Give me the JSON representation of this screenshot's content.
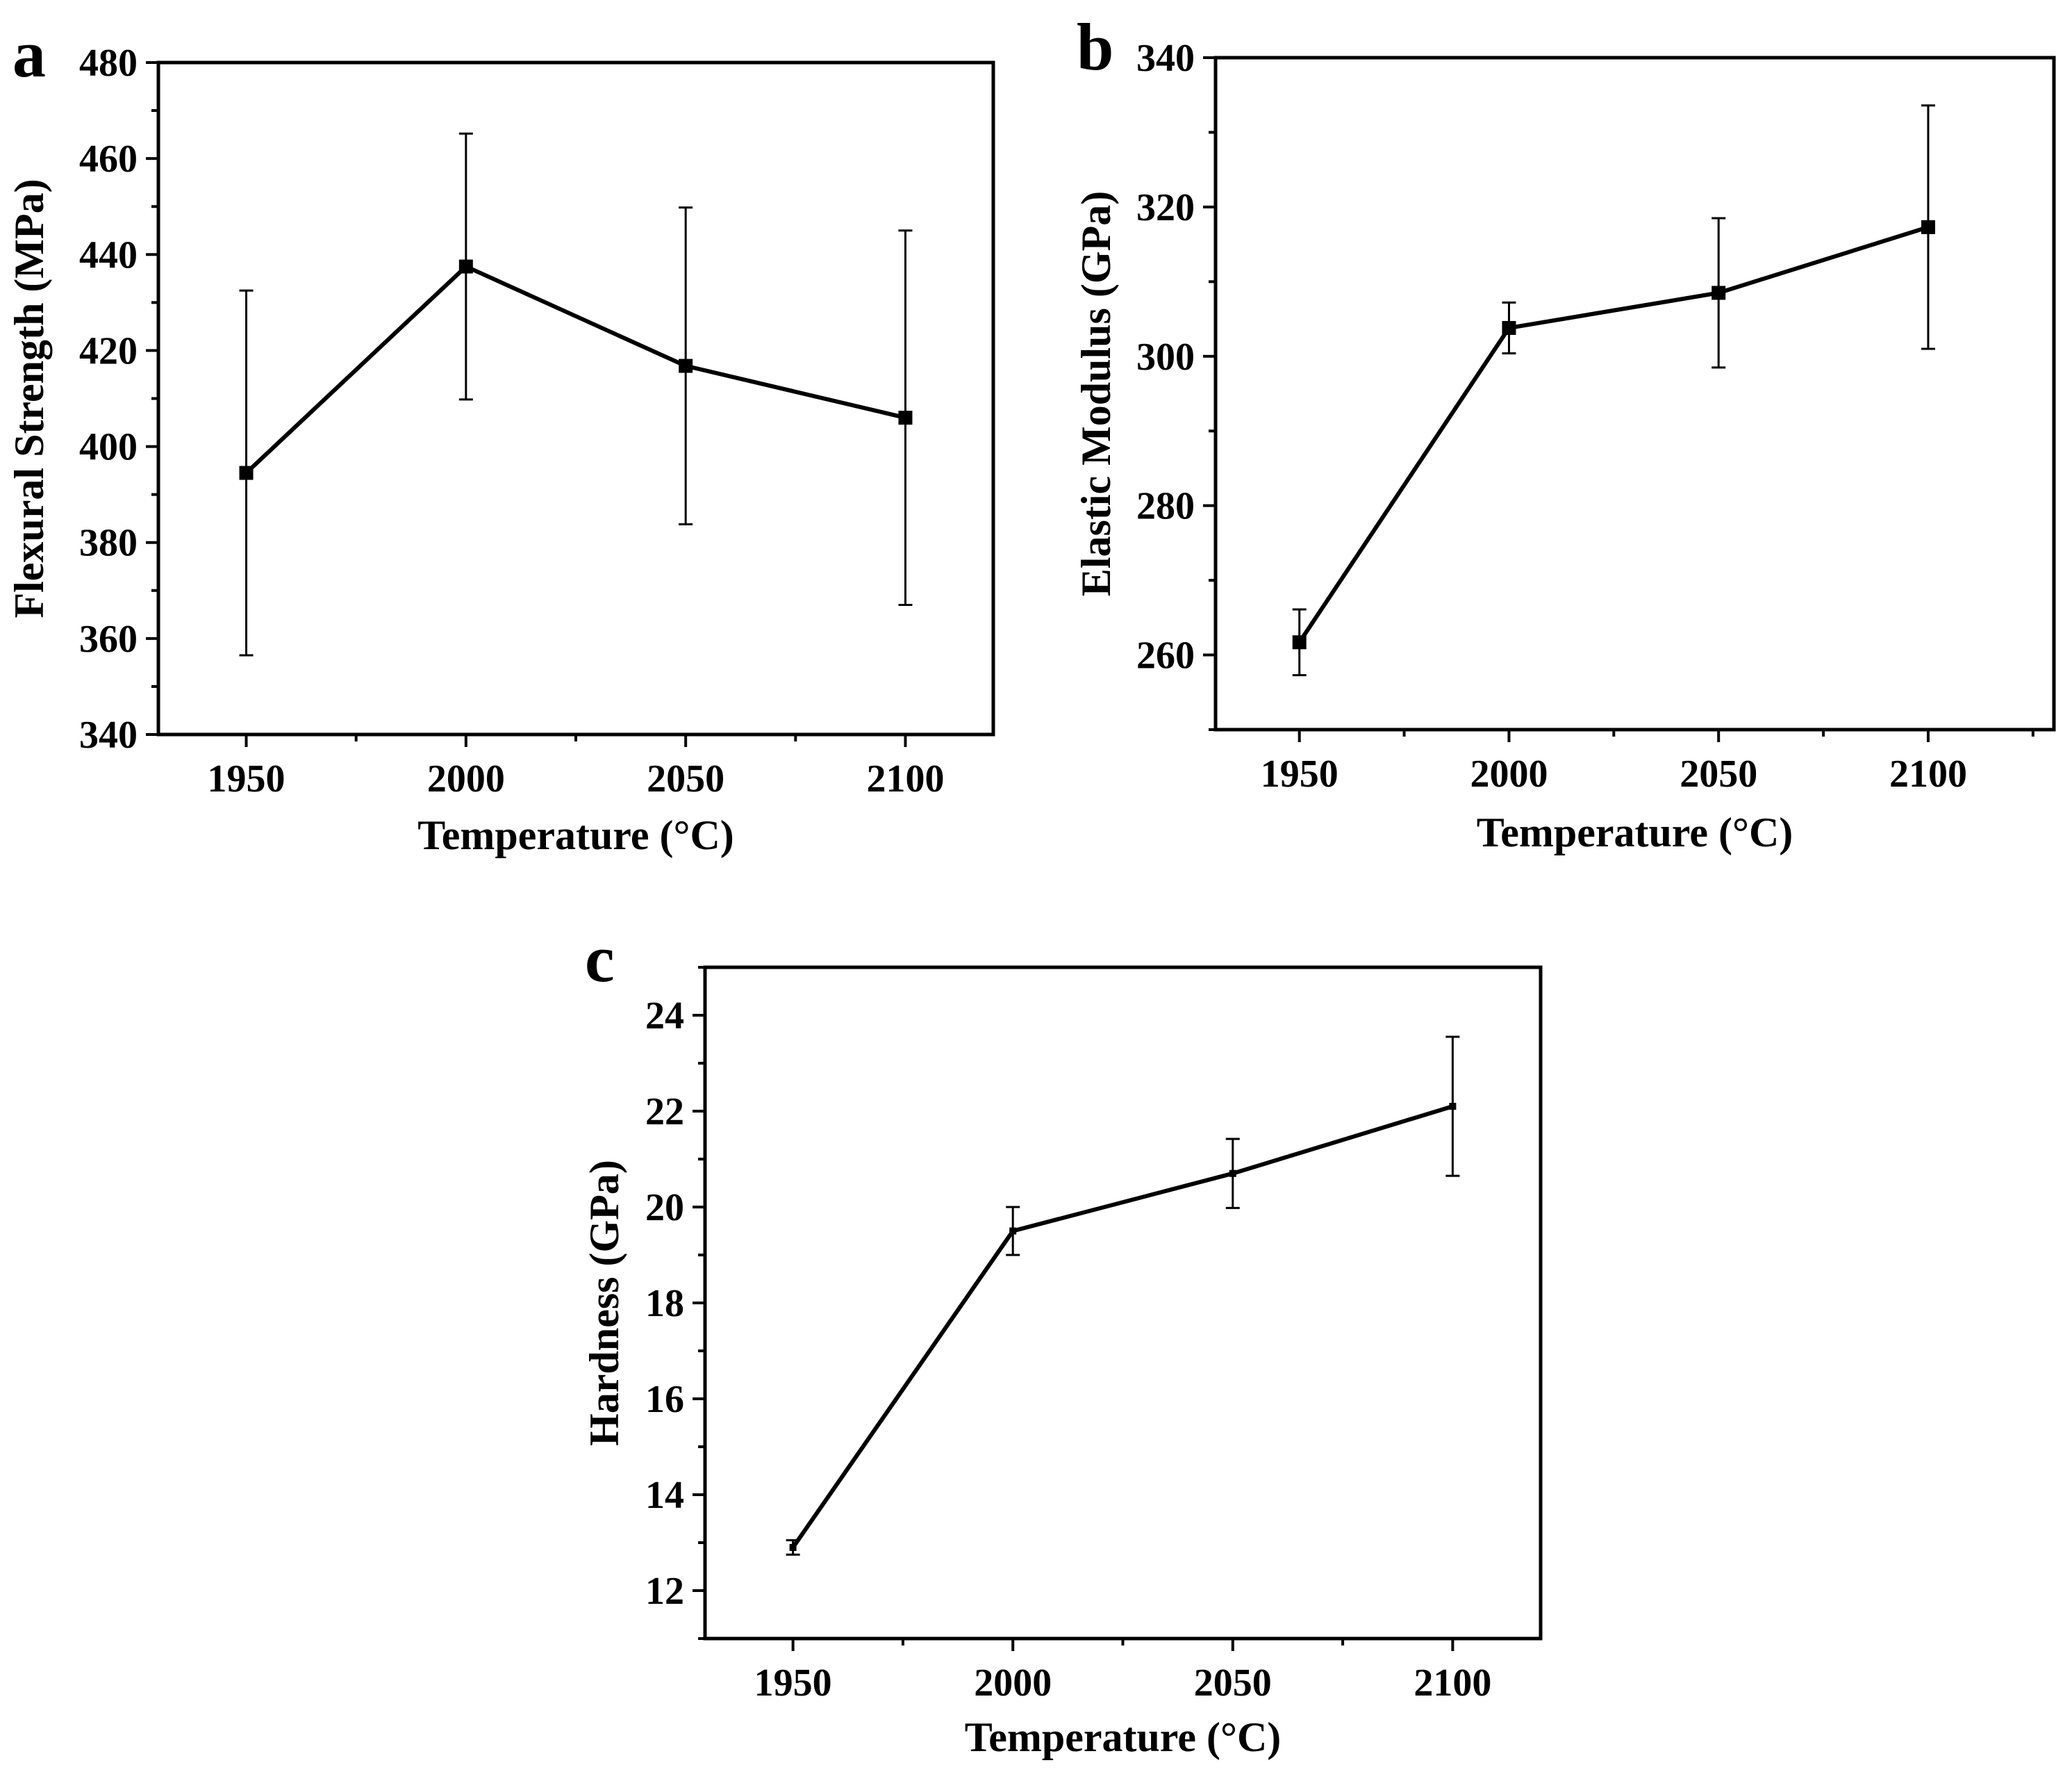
{
  "chart_data": [
    {
      "type": "line",
      "panel_label": "a",
      "xlabel": "Temperature (°C)",
      "ylabel": "Flexural Strength (MPa)",
      "x": [
        1950,
        2000,
        2050,
        2100
      ],
      "values": [
        394.5,
        437.5,
        416.8,
        406.0
      ],
      "errors": [
        38.0,
        27.7,
        33.0,
        39.0
      ],
      "xlim": [
        1930,
        2120
      ],
      "ylim": [
        340,
        480
      ],
      "xticks": [
        1950,
        2000,
        2050,
        2100
      ],
      "xtick_labels": [
        "1950",
        "2000",
        "2050",
        "2100"
      ],
      "yticks": [
        340,
        360,
        380,
        400,
        420,
        440,
        460,
        480
      ],
      "ytick_labels": [
        "340",
        "360",
        "380",
        "400",
        "420",
        "440",
        "460",
        "480"
      ]
    },
    {
      "type": "line",
      "panel_label": "b",
      "xlabel": "Temperature (°C)",
      "ylabel": "Elastic Modulus (GPa)",
      "x": [
        1950,
        2000,
        2050,
        2100
      ],
      "values": [
        261.7,
        303.8,
        308.5,
        317.3
      ],
      "errors": [
        4.4,
        3.4,
        10.0,
        16.3
      ],
      "xlim": [
        1930,
        2130
      ],
      "ylim": [
        250,
        340
      ],
      "xticks": [
        1950,
        2000,
        2050,
        2100
      ],
      "xtick_labels": [
        "1950",
        "2000",
        "2050",
        "2100"
      ],
      "yticks": [
        260,
        280,
        300,
        320,
        340
      ],
      "ytick_labels": [
        "260",
        "280",
        "300",
        "320",
        "340"
      ]
    },
    {
      "type": "line",
      "panel_label": "c",
      "xlabel": "Temperature (°C)",
      "ylabel": "Hardness (GPa)",
      "x": [
        1950,
        2000,
        2050,
        2100
      ],
      "values": [
        12.9,
        19.5,
        20.7,
        22.1
      ],
      "errors": [
        0.15,
        0.5,
        0.72,
        1.45
      ],
      "xlim": [
        1930,
        2120
      ],
      "ylim": [
        11,
        25
      ],
      "xticks": [
        1950,
        2000,
        2050,
        2100
      ],
      "xtick_labels": [
        "1950",
        "2000",
        "2050",
        "2100"
      ],
      "yticks": [
        12,
        14,
        16,
        18,
        20,
        22,
        24
      ],
      "ytick_labels": [
        "12",
        "14",
        "16",
        "18",
        "20",
        "22",
        "24"
      ]
    }
  ]
}
